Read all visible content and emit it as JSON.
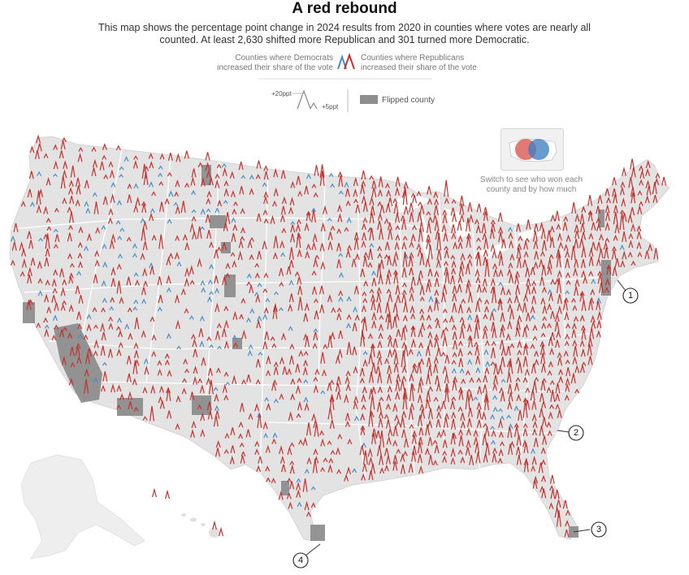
{
  "header": {
    "title": "A red rebound",
    "subtitle": "This map shows the percentage point change in 2024 results from 2020 in counties where votes are nearly all counted. At least 2,630 shifted more Republican and 301 turned more Democratic."
  },
  "legend": {
    "dem_label": "Counties where Democrats increased their share of the vote",
    "rep_label": "Counties where Republicans increased their share of the vote",
    "scale_top": "+20ppt",
    "scale_right": "+5ppt",
    "flipped_label": "Flipped county"
  },
  "toggle": {
    "label": "Switch to see who won each county and by how much"
  },
  "callouts": [
    "1",
    "2",
    "3",
    "4"
  ],
  "colors": {
    "republican": "#c3322f",
    "democrat": "#4a8cc7",
    "land": "#e3e3e3",
    "flipped": "#8e8e8e",
    "state_border": "#ffffff"
  },
  "summary": {
    "counties_shifted_republican": 2630,
    "counties_shifted_democratic": 301
  }
}
